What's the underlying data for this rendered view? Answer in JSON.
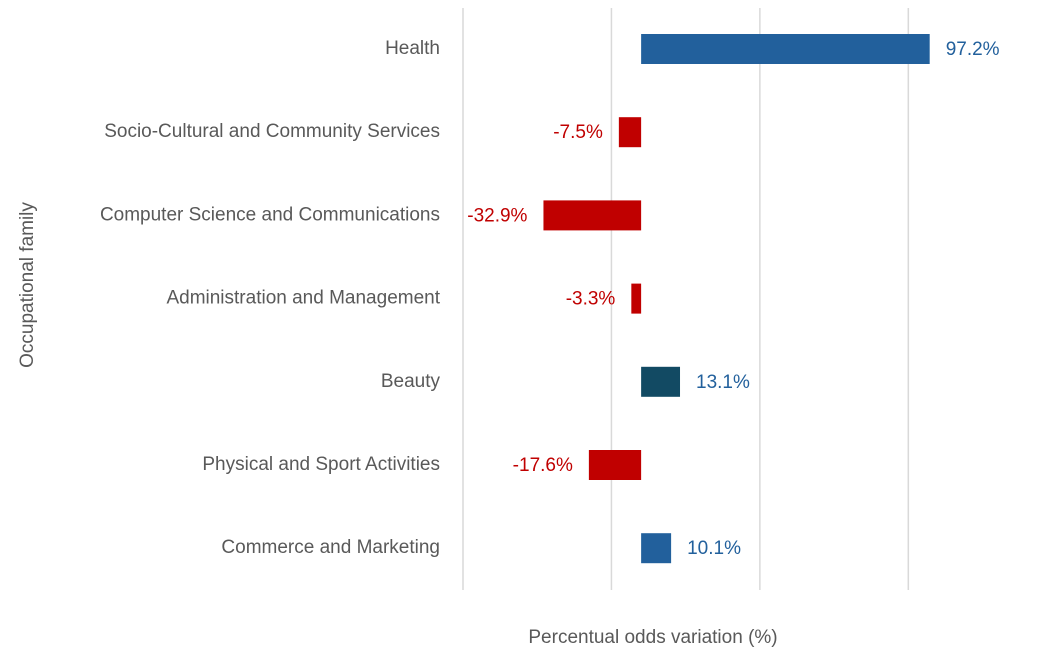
{
  "chart_data": {
    "type": "barh",
    "categories": [
      "Health",
      "Socio-Cultural and Community Services",
      "Computer Science and Communications",
      "Administration and Management",
      "Beauty",
      "Physical and Sport Activities",
      "Commerce and Marketing"
    ],
    "values": [
      97.2,
      -7.5,
      -32.9,
      -3.3,
      13.1,
      -17.6,
      10.1
    ],
    "value_labels": [
      "97.2%",
      "-7.5%",
      "-32.9%",
      "-3.3%",
      "13.1%",
      "-17.6%",
      "10.1%"
    ],
    "colors": [
      "#22609c",
      "#c00000",
      "#c00000",
      "#c00000",
      "#124a63",
      "#c00000",
      "#22609c"
    ],
    "label_colors": [
      "#22609c",
      "#c00000",
      "#c00000",
      "#c00000",
      "#22609c",
      "#c00000",
      "#22609c"
    ],
    "xlabel": "Percentual odds variation (%)",
    "ylabel": "Occupational family",
    "xlim": [
      -60,
      100
    ],
    "xticks": [
      -60,
      -10,
      40,
      90
    ],
    "show_tick_labels": false,
    "grid": true
  }
}
